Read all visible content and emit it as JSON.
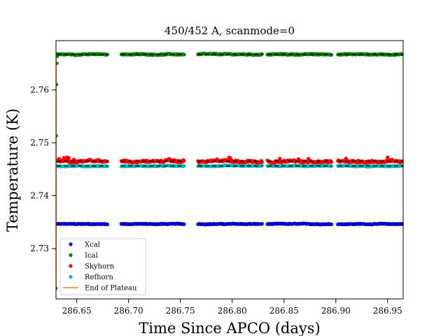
{
  "chart_data": {
    "type": "scatter",
    "title": "450/452 A, scanmode=0",
    "xlabel": "Time Since APCO (days)",
    "ylabel": "Temperature (K)",
    "xlim": [
      286.63,
      286.965
    ],
    "ylim": [
      2.7205,
      2.7693
    ],
    "x_ticks": [
      286.65,
      286.7,
      286.75,
      286.8,
      286.85,
      286.9,
      286.95
    ],
    "x_tick_labels": [
      "286.65",
      "286.70",
      "286.75",
      "286.80",
      "286.85",
      "286.90",
      "286.95"
    ],
    "y_ticks": [
      2.73,
      2.74,
      2.75,
      2.76
    ],
    "y_tick_labels": [
      "2.73",
      "2.74",
      "2.75",
      "2.76"
    ],
    "grid": false,
    "legend_position": "lower-left",
    "segments": [
      [
        286.631,
        286.68
      ],
      [
        286.693,
        286.754
      ],
      [
        286.767,
        286.829
      ],
      [
        286.834,
        286.896
      ],
      [
        286.902,
        286.965
      ]
    ],
    "series": [
      {
        "name": "Xcal",
        "color": "#0000ff",
        "level": 2.73465,
        "noise": 8e-05
      },
      {
        "name": "Ical",
        "color": "#008000",
        "level": 2.7667,
        "noise": 0.00012
      },
      {
        "name": "Skyhorn",
        "color": "#ff0000",
        "level": 2.7465,
        "noise": 0.00025
      },
      {
        "name": "Refhorn",
        "color": "#00bfbf",
        "level": 2.7456,
        "noise": 0.0001
      }
    ],
    "ical_startup": [
      {
        "x": 286.6302,
        "y": 2.7225
      },
      {
        "x": 286.6305,
        "y": 2.7513
      },
      {
        "x": 286.6308,
        "y": 2.761
      },
      {
        "x": 286.6311,
        "y": 2.765
      },
      {
        "x": 286.6314,
        "y": 2.7663
      }
    ],
    "reference_lines": [
      2.73465,
      2.7465,
      2.7456,
      2.7667
    ],
    "end_of_plateau": {
      "name": "End of Plateau",
      "color": "#ff7f0e",
      "x": 286.6301,
      "y_range": [
        2.7225,
        2.7663
      ]
    }
  }
}
